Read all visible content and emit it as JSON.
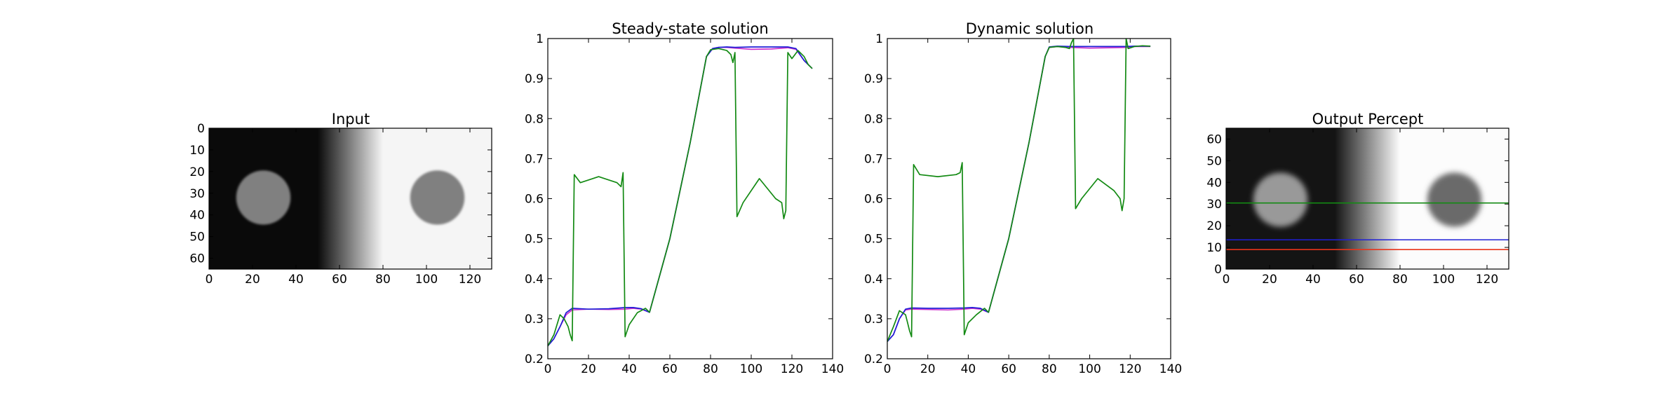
{
  "colors": {
    "magenta_series": "#cc33cc",
    "blue_series": "#1f1fd6",
    "green_series": "#138a13",
    "red_line": "#e8341a",
    "blue_line": "#1f1fd6",
    "green_line": "#138a13",
    "axes": "#000000"
  },
  "chart_data": [
    {
      "type": "heatmap",
      "title": "Input",
      "colormap": "gray",
      "xlim": [
        0,
        130
      ],
      "ylim": [
        0,
        65
      ],
      "y_inverted": true,
      "xticks": [
        0,
        20,
        40,
        60,
        80,
        100,
        120
      ],
      "yticks": [
        0,
        10,
        20,
        30,
        40,
        50,
        60
      ],
      "background_luminance": {
        "x": [
          0,
          50,
          80,
          130
        ],
        "value": [
          0.04,
          0.04,
          0.96,
          0.96
        ]
      },
      "disks": [
        {
          "cx": 25,
          "cy": 32,
          "r": 12.5,
          "value": 0.5
        },
        {
          "cx": 105,
          "cy": 32,
          "r": 12.5,
          "value": 0.5
        }
      ]
    },
    {
      "type": "line",
      "title": "Steady-state solution",
      "xlim": [
        0,
        140
      ],
      "ylim": [
        0.2,
        1.0
      ],
      "xticks": [
        0,
        20,
        40,
        60,
        80,
        100,
        120,
        140
      ],
      "yticks": [
        0.2,
        0.3,
        0.4,
        0.5,
        0.6,
        0.7,
        0.8,
        0.9,
        1.0
      ],
      "series": [
        {
          "color": "magenta",
          "x": [
            0,
            3,
            6,
            9,
            12,
            20,
            30,
            38,
            42,
            46,
            50,
            60,
            70,
            78,
            81,
            84,
            88,
            92,
            100,
            110,
            118,
            122,
            126,
            130
          ],
          "y": [
            0.232,
            0.25,
            0.28,
            0.31,
            0.322,
            0.324,
            0.323,
            0.324,
            0.326,
            0.324,
            0.316,
            0.5,
            0.74,
            0.955,
            0.975,
            0.978,
            0.978,
            0.976,
            0.973,
            0.974,
            0.977,
            0.973,
            0.945,
            0.925
          ]
        },
        {
          "color": "blue",
          "x": [
            0,
            3,
            6,
            9,
            12,
            20,
            30,
            38,
            42,
            46,
            50,
            60,
            70,
            78,
            81,
            84,
            88,
            92,
            100,
            110,
            118,
            122,
            126,
            130
          ],
          "y": [
            0.232,
            0.25,
            0.28,
            0.315,
            0.326,
            0.324,
            0.325,
            0.328,
            0.328,
            0.325,
            0.316,
            0.5,
            0.74,
            0.955,
            0.975,
            0.978,
            0.979,
            0.978,
            0.979,
            0.979,
            0.979,
            0.975,
            0.945,
            0.925
          ]
        },
        {
          "color": "green",
          "x": [
            0,
            3,
            6,
            8,
            10,
            11,
            12,
            13,
            16,
            25,
            34,
            36,
            37,
            38,
            40,
            44,
            48,
            50,
            60,
            70,
            78,
            80,
            84,
            88,
            90,
            91,
            92,
            93,
            96,
            104,
            112,
            115,
            116,
            117,
            118,
            120,
            123,
            126,
            128,
            130
          ],
          "y": [
            0.232,
            0.26,
            0.31,
            0.3,
            0.28,
            0.26,
            0.245,
            0.66,
            0.64,
            0.655,
            0.64,
            0.63,
            0.665,
            0.255,
            0.285,
            0.315,
            0.326,
            0.316,
            0.5,
            0.74,
            0.955,
            0.972,
            0.975,
            0.97,
            0.96,
            0.94,
            0.965,
            0.555,
            0.59,
            0.65,
            0.6,
            0.59,
            0.55,
            0.57,
            0.965,
            0.95,
            0.97,
            0.955,
            0.935,
            0.925
          ]
        }
      ]
    },
    {
      "type": "line",
      "title": "Dynamic solution",
      "xlim": [
        0,
        140
      ],
      "ylim": [
        0.2,
        1.0
      ],
      "xticks": [
        0,
        20,
        40,
        60,
        80,
        100,
        120,
        140
      ],
      "yticks": [
        0.2,
        0.3,
        0.4,
        0.5,
        0.6,
        0.7,
        0.8,
        0.9,
        1.0
      ],
      "series": [
        {
          "color": "magenta",
          "x": [
            0,
            3,
            6,
            9,
            12,
            20,
            30,
            38,
            42,
            46,
            50,
            60,
            70,
            78,
            80,
            84,
            90,
            100,
            110,
            118,
            122,
            126,
            130
          ],
          "y": [
            0.243,
            0.26,
            0.3,
            0.322,
            0.324,
            0.323,
            0.322,
            0.324,
            0.326,
            0.324,
            0.316,
            0.5,
            0.74,
            0.955,
            0.978,
            0.98,
            0.978,
            0.976,
            0.977,
            0.978,
            0.98,
            0.98,
            0.98
          ]
        },
        {
          "color": "blue",
          "x": [
            0,
            3,
            6,
            9,
            12,
            20,
            30,
            38,
            42,
            46,
            50,
            60,
            70,
            78,
            80,
            84,
            90,
            100,
            110,
            118,
            122,
            126,
            130
          ],
          "y": [
            0.243,
            0.26,
            0.3,
            0.324,
            0.327,
            0.326,
            0.326,
            0.327,
            0.328,
            0.326,
            0.316,
            0.5,
            0.74,
            0.955,
            0.979,
            0.981,
            0.98,
            0.98,
            0.98,
            0.98,
            0.981,
            0.981,
            0.981
          ]
        },
        {
          "color": "green",
          "x": [
            0,
            3,
            6,
            9,
            10,
            11,
            12,
            13,
            16,
            25,
            34,
            36,
            37,
            38,
            40,
            44,
            48,
            50,
            60,
            70,
            78,
            80,
            84,
            88,
            90,
            91,
            92,
            93,
            96,
            104,
            112,
            115,
            116,
            117,
            118,
            119,
            122,
            126,
            130
          ],
          "y": [
            0.243,
            0.28,
            0.32,
            0.31,
            0.29,
            0.27,
            0.255,
            0.685,
            0.66,
            0.655,
            0.66,
            0.665,
            0.69,
            0.26,
            0.29,
            0.31,
            0.326,
            0.316,
            0.5,
            0.74,
            0.955,
            0.978,
            0.98,
            0.978,
            0.975,
            0.99,
            1.0,
            0.575,
            0.6,
            0.65,
            0.62,
            0.6,
            0.57,
            0.6,
            1.0,
            0.975,
            0.98,
            0.982,
            0.981
          ]
        }
      ]
    },
    {
      "type": "heatmap",
      "title": "Output Percept",
      "colormap": "gray",
      "xlim": [
        0,
        130
      ],
      "ylim": [
        0,
        65
      ],
      "y_inverted": false,
      "xticks": [
        0,
        20,
        40,
        60,
        80,
        100,
        120
      ],
      "yticks": [
        0,
        10,
        20,
        30,
        40,
        50,
        60
      ],
      "background_luminance": {
        "x": [
          0,
          50,
          80,
          130
        ],
        "value": [
          0.08,
          0.08,
          0.99,
          0.99
        ]
      },
      "disks": [
        {
          "cx": 25,
          "cy": 32,
          "r": 12.5,
          "value": 0.6
        },
        {
          "cx": 105,
          "cy": 32,
          "r": 12.5,
          "value": 0.42
        }
      ],
      "hlines": [
        {
          "y": 9,
          "color": "red"
        },
        {
          "y": 13.5,
          "color": "blue"
        },
        {
          "y": 30.5,
          "color": "green"
        }
      ]
    }
  ]
}
